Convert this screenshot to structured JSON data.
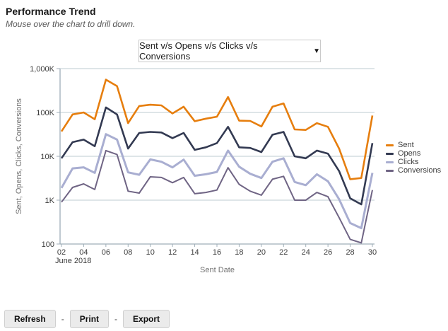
{
  "header": {
    "title": "Performance Trend",
    "subtitle": "Mouse over the chart to drill down."
  },
  "controls": {
    "metric_dropdown": {
      "value": "Sent v/s Opens v/s Clicks v/s Conversions",
      "caret_icon": "▼"
    }
  },
  "chart_data": {
    "type": "line",
    "title": "",
    "xlabel": "Sent Date",
    "ylabel": "Sent, Opens, Clicks, Conversions",
    "x_context_label": "June 2018",
    "y_scale": "log",
    "ylim": [
      100,
      1000000
    ],
    "y_tick_labels": [
      "1,000K",
      "100K",
      "10K",
      "1K",
      "100"
    ],
    "y_tick_values": [
      1000000,
      100000,
      10000,
      1000,
      100
    ],
    "x_tick_labels": [
      "02",
      "04",
      "06",
      "08",
      "10",
      "12",
      "14",
      "16",
      "18",
      "20",
      "22",
      "24",
      "26",
      "28",
      "30"
    ],
    "x_days": [
      2,
      3,
      4,
      5,
      6,
      7,
      8,
      9,
      10,
      11,
      12,
      13,
      14,
      15,
      16,
      17,
      18,
      19,
      20,
      21,
      22,
      23,
      24,
      25,
      26,
      27,
      28,
      29,
      30
    ],
    "grid": true,
    "legend_position": "right",
    "series": [
      {
        "name": "Sent",
        "color": "#E67E0E",
        "width": 2.6,
        "values": [
          37000,
          90000,
          100000,
          70000,
          560000,
          400000,
          57000,
          140000,
          150000,
          145000,
          95000,
          135000,
          63000,
          72000,
          80000,
          225000,
          65000,
          64000,
          48000,
          135000,
          160000,
          41000,
          40000,
          57000,
          47000,
          15000,
          3000,
          3200,
          85000
        ]
      },
      {
        "name": "Opens",
        "color": "#333A52",
        "width": 2.6,
        "values": [
          9000,
          21000,
          24000,
          17000,
          130000,
          90000,
          15000,
          34000,
          36000,
          35000,
          26000,
          34000,
          14000,
          16000,
          20000,
          47000,
          16000,
          15500,
          12500,
          31000,
          36000,
          10000,
          9000,
          13500,
          11500,
          4600,
          1100,
          800,
          20000
        ]
      },
      {
        "name": "Clicks",
        "color": "#A9AED1",
        "width": 3,
        "values": [
          1900,
          5300,
          5600,
          4200,
          32000,
          24000,
          4300,
          3800,
          8500,
          7500,
          5600,
          8400,
          3600,
          3900,
          4400,
          13500,
          5800,
          4000,
          3200,
          7500,
          9000,
          2600,
          2200,
          3900,
          2700,
          1050,
          300,
          230,
          4200
        ]
      },
      {
        "name": "Conversions",
        "color": "#6F6484",
        "width": 2,
        "values": [
          900,
          1950,
          2350,
          1750,
          13500,
          11000,
          1600,
          1450,
          3400,
          3300,
          2500,
          3300,
          1400,
          1500,
          1700,
          5500,
          2300,
          1600,
          1300,
          3000,
          3500,
          1000,
          1000,
          1500,
          1200,
          400,
          128,
          106,
          1700
        ]
      }
    ]
  },
  "footer": {
    "separator": "-",
    "buttons": [
      {
        "label": "Refresh"
      },
      {
        "label": "Print"
      },
      {
        "label": "Export"
      }
    ]
  }
}
